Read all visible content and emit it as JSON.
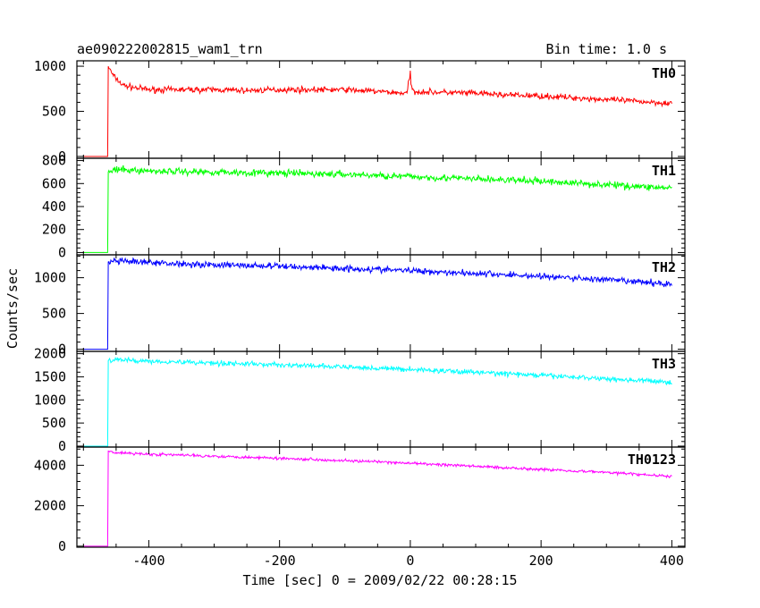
{
  "header": {
    "title": "ae090222002815_wam1_trn",
    "bin_time": "Bin time: 1.0 s"
  },
  "axes": {
    "xlabel": "Time [sec] 0 = 2009/02/22 00:28:15",
    "ylabel": "Counts/sec"
  },
  "chart_data": {
    "type": "line",
    "title": "ae090222002815_wam1_trn",
    "xlabel": "Time [sec] 0 = 2009/02/22 00:28:15",
    "ylabel": "Counts/sec",
    "xlim": [
      -510,
      420
    ],
    "x_ticks": [
      -400,
      -200,
      0,
      200,
      400
    ],
    "grid": false,
    "legend": "none",
    "panels": [
      {
        "name": "TH0",
        "color": "#ff0000",
        "ylim": [
          -20,
          1060
        ],
        "y_ticks": [
          0,
          500,
          1000
        ],
        "trigger_x": -462,
        "x": [
          -500,
          -463,
          -462,
          -455,
          -440,
          -420,
          -400,
          -350,
          -300,
          -250,
          -200,
          -150,
          -100,
          -50,
          -5,
          0,
          1,
          5,
          50,
          100,
          150,
          200,
          250,
          300,
          350,
          400
        ],
        "values": [
          0,
          0,
          1000,
          900,
          790,
          760,
          740,
          740,
          740,
          730,
          740,
          740,
          740,
          720,
          700,
          940,
          780,
          720,
          710,
          700,
          680,
          670,
          650,
          630,
          610,
          590
        ],
        "noise": 32
      },
      {
        "name": "TH1",
        "color": "#00ff00",
        "ylim": [
          -20,
          820
        ],
        "y_ticks": [
          0,
          200,
          400,
          600,
          800
        ],
        "trigger_x": -462,
        "x": [
          -500,
          -463,
          -462,
          -450,
          -400,
          -300,
          -200,
          -100,
          0,
          100,
          200,
          300,
          400
        ],
        "values": [
          0,
          0,
          700,
          720,
          710,
          700,
          690,
          680,
          660,
          640,
          620,
          590,
          560
        ],
        "noise": 30
      },
      {
        "name": "TH2",
        "color": "#0000ff",
        "ylim": [
          -30,
          1320
        ],
        "y_ticks": [
          0,
          500,
          1000
        ],
        "trigger_x": -462,
        "x": [
          -500,
          -463,
          -462,
          -450,
          -400,
          -300,
          -200,
          -100,
          0,
          100,
          200,
          300,
          400
        ],
        "values": [
          0,
          0,
          1220,
          1230,
          1210,
          1180,
          1160,
          1130,
          1100,
          1060,
          1020,
          970,
          910
        ],
        "noise": 45
      },
      {
        "name": "TH3",
        "color": "#00ffff",
        "ylim": [
          -20,
          2050
        ],
        "y_ticks": [
          0,
          500,
          1000,
          1500,
          2000
        ],
        "trigger_x": -462,
        "x": [
          -500,
          -463,
          -462,
          -450,
          -400,
          -300,
          -200,
          -100,
          0,
          100,
          200,
          300,
          400
        ],
        "values": [
          0,
          0,
          1850,
          1870,
          1840,
          1800,
          1760,
          1710,
          1660,
          1600,
          1530,
          1460,
          1380
        ],
        "noise": 55
      },
      {
        "name": "TH0123",
        "color": "#ff00ff",
        "ylim": [
          -50,
          4900
        ],
        "y_ticks": [
          0,
          2000,
          4000
        ],
        "trigger_x": -462,
        "x": [
          -500,
          -463,
          -462,
          -450,
          -400,
          -300,
          -200,
          -100,
          0,
          100,
          200,
          300,
          400
        ],
        "values": [
          0,
          0,
          4700,
          4620,
          4550,
          4450,
          4350,
          4230,
          4100,
          3950,
          3800,
          3650,
          3450
        ],
        "noise": 70
      }
    ]
  }
}
